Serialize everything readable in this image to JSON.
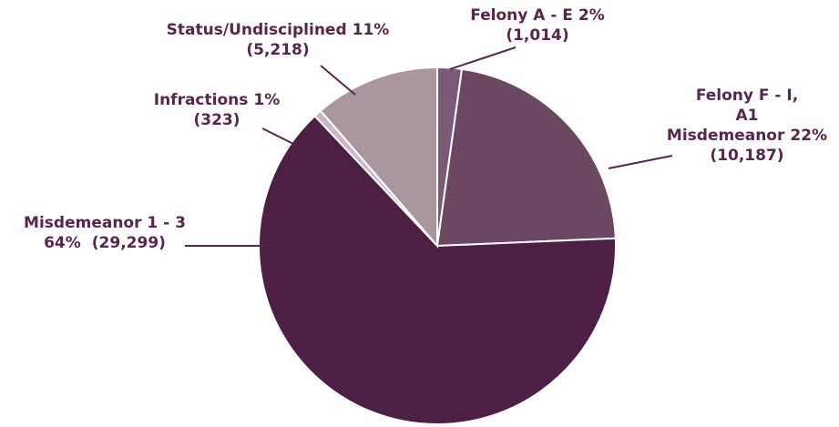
{
  "chart_data": {
    "type": "pie",
    "categories": [
      "Felony A - E",
      "Felony F - I,\nA1 Misdemeanor",
      "Misdemeanor 1 - 3",
      "Infractions",
      "Status/Undisciplined"
    ],
    "values": [
      1014,
      10187,
      29299,
      323,
      5218
    ],
    "value_labels": [
      "(1,014)",
      "(10,187)",
      "(29,299)",
      "(323)",
      "(5,218)"
    ],
    "percents": [
      2,
      22,
      64,
      1,
      11
    ],
    "percent_labels": [
      "2%",
      "22%",
      "64%",
      "1%",
      "11%"
    ],
    "colors": [
      "#7b5a75",
      "#6b4762",
      "#4e1f45",
      "#c9b9c6",
      "#a9969f"
    ]
  }
}
